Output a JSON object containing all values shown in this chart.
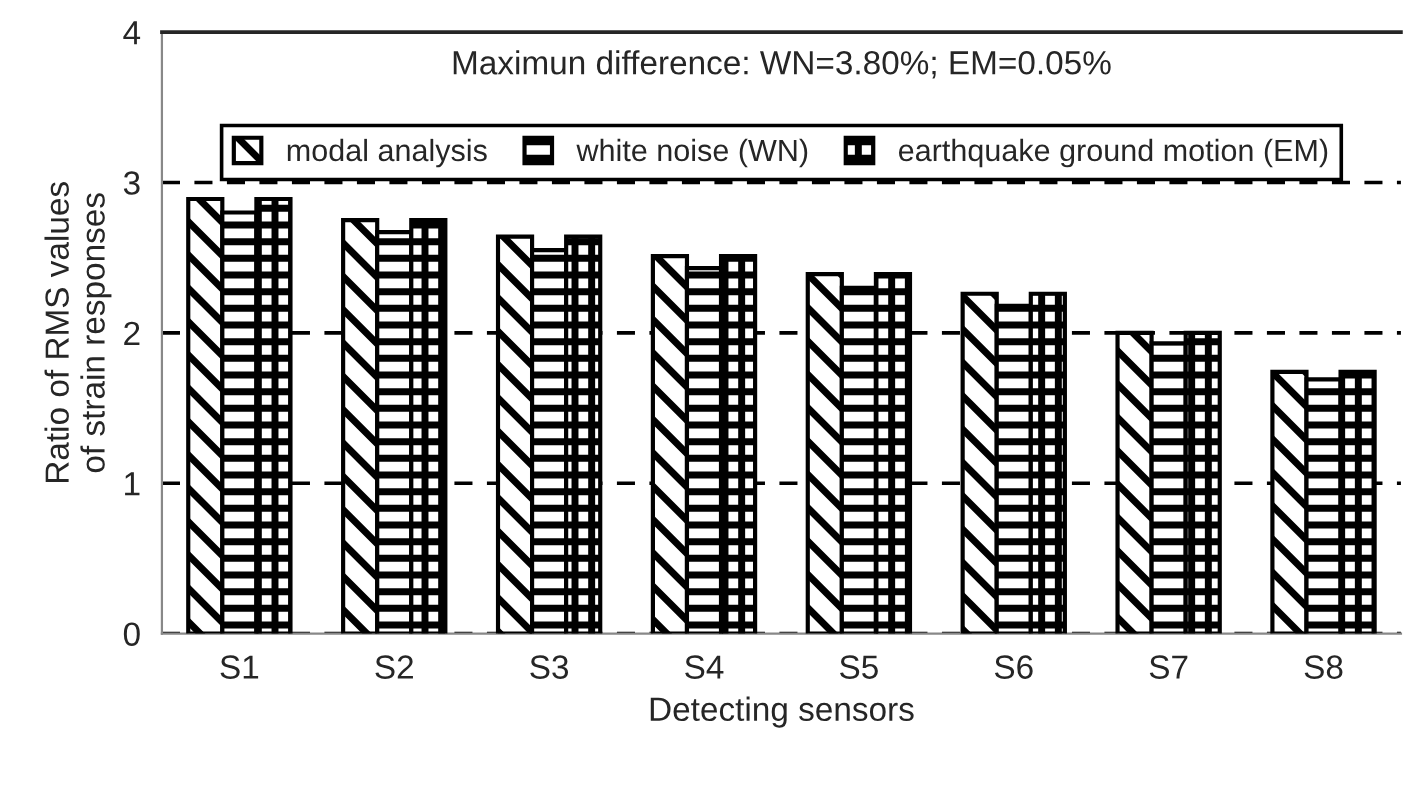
{
  "chart_data": {
    "type": "bar",
    "xlabel": "Detecting sensors",
    "ylabel": "Ratio of RMS values\nof strain responses",
    "categories": [
      "S1",
      "S2",
      "S3",
      "S4",
      "S5",
      "S6",
      "S7",
      "S8"
    ],
    "series": [
      {
        "name": "modal analysis",
        "color": "#000000",
        "values": [
          2.89,
          2.75,
          2.64,
          2.51,
          2.39,
          2.26,
          2.0,
          1.74
        ]
      },
      {
        "name": "white noise (WN)",
        "color": "#000000",
        "values": [
          2.8,
          2.67,
          2.55,
          2.43,
          2.3,
          2.18,
          1.93,
          1.69
        ]
      },
      {
        "name": "earthquake ground motion (EM)",
        "color": "#000000",
        "values": [
          2.89,
          2.75,
          2.64,
          2.51,
          2.39,
          2.26,
          2.0,
          1.74
        ]
      }
    ],
    "ylim": [
      0,
      4
    ],
    "yticks": [
      0,
      1,
      2,
      3,
      4
    ],
    "grid": "y",
    "legend": "top",
    "annotations": [
      "Maximun difference: WN=3.80%; EM=0.05%"
    ]
  }
}
